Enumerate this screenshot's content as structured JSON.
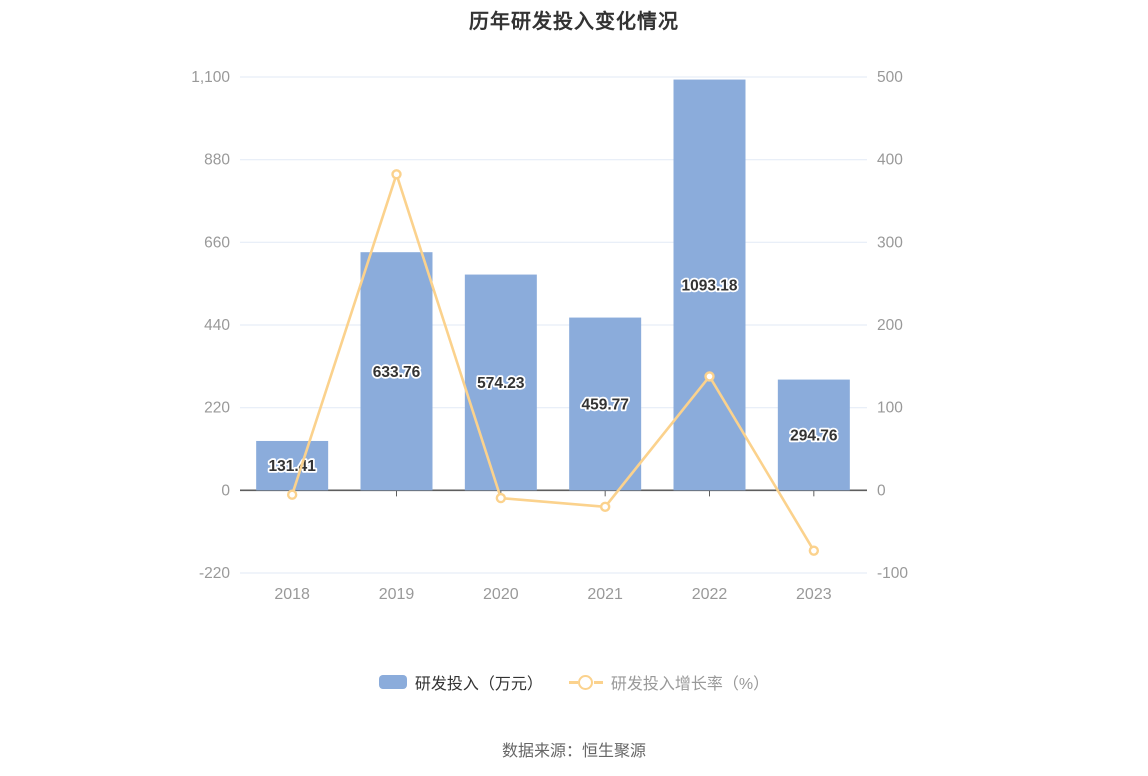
{
  "title": "历年研发投入变化情况",
  "source": "数据来源：恒生聚源",
  "colors": {
    "bar": "#8BACDB",
    "line": "#FBD28D",
    "grid": "#E6EDF7",
    "axis": "#5E5E5E",
    "axis_label": "#999999",
    "bar_label": "#333333",
    "title": "#333333",
    "legend_bar_label": "#333333",
    "legend_line_label": "#999999",
    "source": "#666666"
  },
  "legend": [
    {
      "label": "研发投入（万元）",
      "marker": "bar-swatch"
    },
    {
      "label": "研发投入增长率（%）",
      "marker": "line-circle"
    }
  ],
  "chart_data": {
    "type": "combo",
    "title": "历年研发投入变化情况",
    "categories": [
      "2018",
      "2019",
      "2020",
      "2021",
      "2022",
      "2023"
    ],
    "series": [
      {
        "name": "研发投入（万元）",
        "type": "bar",
        "axis": "left",
        "values": [
          131.41,
          633.76,
          574.23,
          459.77,
          1093.18,
          294.76
        ],
        "labels": [
          "131.41",
          "633.76",
          "574.23",
          "459.77",
          "1093.18",
          "294.76"
        ]
      },
      {
        "name": "研发投入增长率（%）",
        "type": "line",
        "axis": "right",
        "values": [
          -5.3,
          382.3,
          -9.4,
          -19.9,
          137.8,
          -73.0
        ]
      }
    ],
    "left_axis": {
      "min": -220,
      "max": 1100,
      "interval": 220,
      "tick_labels": [
        "-220",
        "0",
        "220",
        "440",
        "660",
        "880",
        "1,100"
      ]
    },
    "right_axis": {
      "min": -100,
      "max": 500,
      "interval": 100,
      "tick_labels": [
        "-100",
        "0",
        "100",
        "200",
        "300",
        "400",
        "500"
      ]
    },
    "grid": true,
    "legend_position": "bottom"
  }
}
